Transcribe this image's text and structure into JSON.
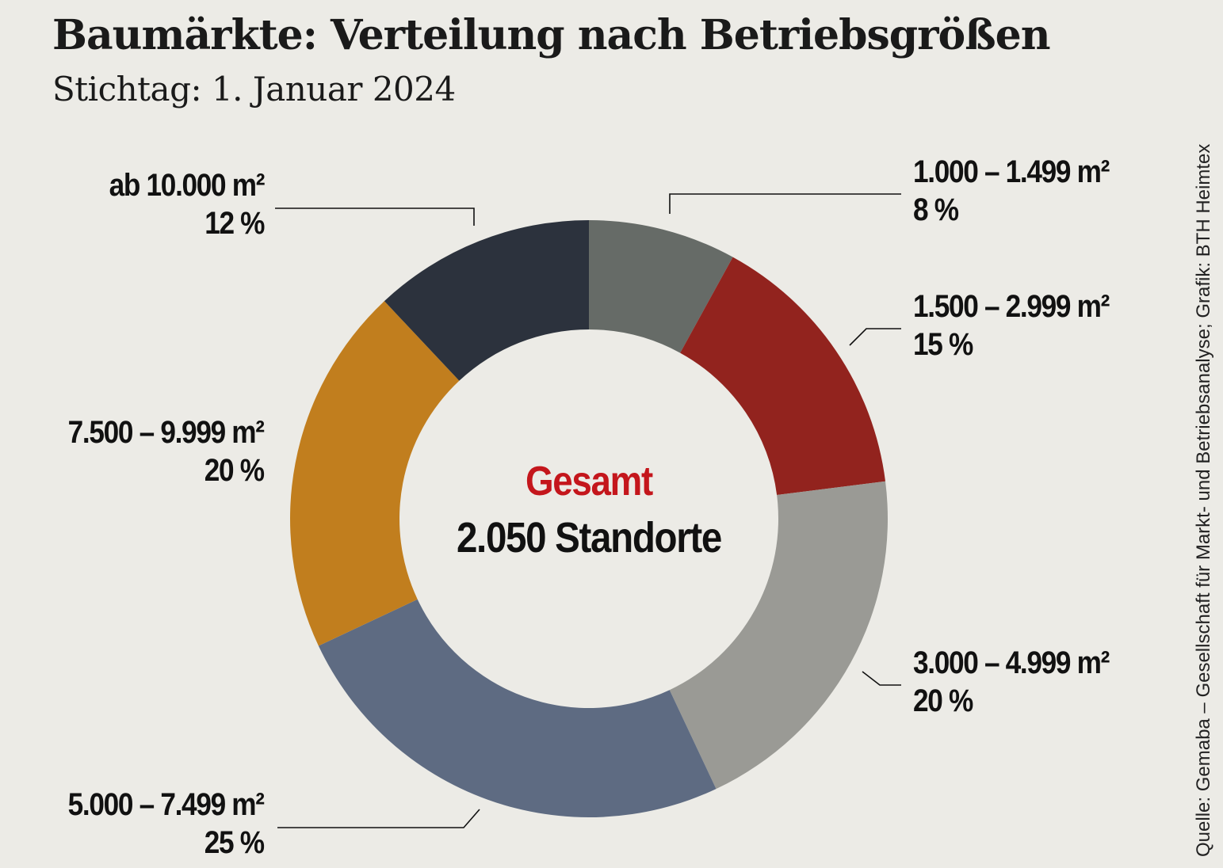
{
  "chart_data": {
    "type": "pie",
    "donut": true,
    "title": "Baumärkte: Verteilung nach Betriebsgrößen",
    "subtitle": "Stichtag: 1. Januar 2024",
    "center_label": "Gesamt",
    "center_value": "2.050 Standorte",
    "source": "Quelle: Gemaba – Gesellschaft für Markt- und Betriebsanalyse; Grafik: BTH Heimtex",
    "slices": [
      {
        "label": "1.000 – 1.499 m²",
        "value": 8,
        "value_label": "8 %",
        "color": "#666b67"
      },
      {
        "label": "1.500 – 2.999 m²",
        "value": 15,
        "value_label": "15 %",
        "color": "#92231e"
      },
      {
        "label": "3.000 – 4.999 m²",
        "value": 20,
        "value_label": "20 %",
        "color": "#9a9a95"
      },
      {
        "label": "5.000 – 7.499 m²",
        "value": 25,
        "value_label": "25 %",
        "color": "#5e6b82"
      },
      {
        "label": "7.500 – 9.999 m²",
        "value": 20,
        "value_label": "20 %",
        "color": "#c17e1e"
      },
      {
        "label": "ab 10.000 m²",
        "value": 12,
        "value_label": "12 %",
        "color": "#2c323d"
      }
    ]
  }
}
